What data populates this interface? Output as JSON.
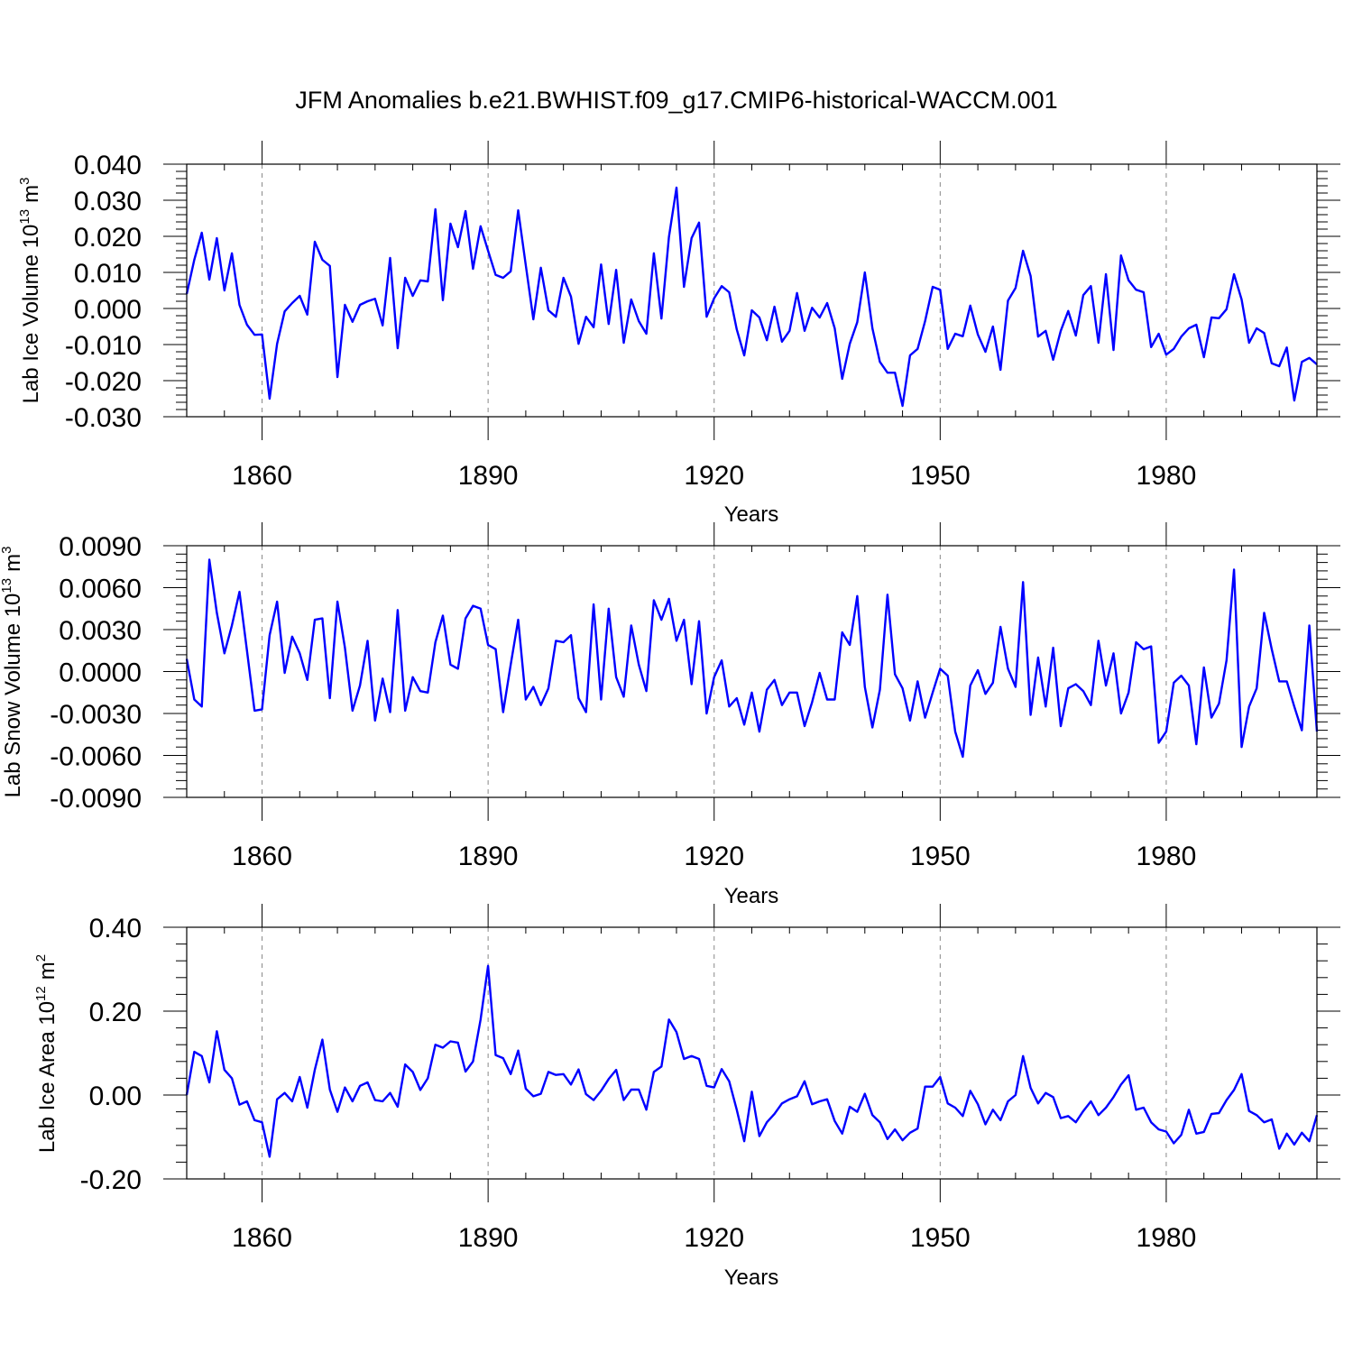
{
  "colors": {
    "series": "#0000ff",
    "axis": "#000000",
    "grid": "#888888",
    "background": "#ffffff"
  },
  "chart_data": {
    "title": "JFM Anomalies b.e21.BWHIST.f09_g17.CMIP6-historical-WACCM.001",
    "x_start": 1850,
    "x_end": 2000,
    "panels": [
      {
        "type": "line",
        "ylabel_main": "Lab Ice Volume 10",
        "ylabel_sup": "13",
        "ylabel_unit": "m",
        "ylabel_unit_sup": "3",
        "xlabel": "Years",
        "xlim": [
          1850,
          2000
        ],
        "ylim": [
          -0.03,
          0.04
        ],
        "xticks": [
          1860,
          1890,
          1920,
          1950,
          1980
        ],
        "xtick_labels": [
          "1860",
          "1890",
          "1920",
          "1950",
          "1980"
        ],
        "yticks": [
          -0.03,
          -0.02,
          -0.01,
          0.0,
          0.01,
          0.02,
          0.03,
          0.04
        ],
        "ytick_labels": [
          "-0.030",
          "-0.020",
          "-0.010",
          "0.000",
          "0.010",
          "0.020",
          "0.030",
          "0.040"
        ],
        "grid": "dashed vertical at major x ticks",
        "values": [
          0.004,
          0.0135,
          0.021,
          0.008,
          0.0195,
          0.005,
          0.0153,
          0.001,
          -0.0045,
          -0.0073,
          -0.0072,
          -0.025,
          -0.0098,
          -0.0008,
          0.0015,
          0.0035,
          -0.0017,
          0.0185,
          0.0135,
          0.0118,
          -0.019,
          0.001,
          -0.0037,
          0.001,
          0.002,
          0.0027,
          -0.0047,
          0.014,
          -0.011,
          0.0085,
          0.0035,
          0.0078,
          0.0075,
          0.0275,
          0.0023,
          0.0235,
          0.017,
          0.027,
          0.011,
          0.0228,
          0.016,
          0.0093,
          0.0085,
          0.0103,
          0.0272,
          0.012,
          -0.003,
          0.0113,
          -0.0005,
          -0.0023,
          0.0085,
          0.0033,
          -0.0098,
          -0.0023,
          -0.0052,
          0.0122,
          -0.0043,
          0.0107,
          -0.0095,
          0.0025,
          -0.0035,
          -0.007,
          0.0153,
          -0.0028,
          0.0198,
          0.0335,
          0.006,
          0.0195,
          0.0238,
          -0.0023,
          0.0028,
          0.0062,
          0.0045,
          -0.0058,
          -0.013,
          -0.0005,
          -0.0025,
          -0.0088,
          0.0005,
          -0.0092,
          -0.0062,
          0.0043,
          -0.0062,
          0.0002,
          -0.0025,
          0.0015,
          -0.0055,
          -0.0195,
          -0.0098,
          -0.0038,
          0.01,
          -0.0055,
          -0.0148,
          -0.0178,
          -0.0178,
          -0.027,
          -0.013,
          -0.0112,
          -0.0035,
          0.006,
          0.0052,
          -0.0112,
          -0.007,
          -0.0077,
          0.0008,
          -0.0072,
          -0.012,
          -0.005,
          -0.017,
          0.0022,
          0.0057,
          0.016,
          0.009,
          -0.0078,
          -0.0062,
          -0.0142,
          -0.0062,
          -0.0007,
          -0.0075,
          0.0037,
          0.0062,
          -0.0095,
          0.0095,
          -0.0115,
          0.0147,
          0.0078,
          0.0052,
          0.0045,
          -0.0107,
          -0.007,
          -0.0128,
          -0.0112,
          -0.0078,
          -0.0055,
          -0.0045,
          -0.0135,
          -0.0025,
          -0.0027,
          -0.0002,
          0.0095,
          0.0025,
          -0.0095,
          -0.0055,
          -0.0068,
          -0.0152,
          -0.016,
          -0.0108,
          -0.0255,
          -0.0148,
          -0.0137,
          -0.0155
        ]
      },
      {
        "type": "line",
        "ylabel_main": "Lab Snow Volume 10",
        "ylabel_sup": "13",
        "ylabel_unit": "m",
        "ylabel_unit_sup": "3",
        "xlabel": "Years",
        "xlim": [
          1850,
          2000
        ],
        "ylim": [
          -0.009,
          0.009
        ],
        "xticks": [
          1860,
          1890,
          1920,
          1950,
          1980
        ],
        "xtick_labels": [
          "1860",
          "1890",
          "1920",
          "1950",
          "1980"
        ],
        "yticks": [
          -0.009,
          -0.006,
          -0.003,
          0.0,
          0.003,
          0.006,
          0.009
        ],
        "ytick_labels": [
          "-0.0090",
          "-0.0060",
          "-0.0030",
          "0.0000",
          "0.0030",
          "0.0060",
          "0.0090"
        ],
        "grid": "dashed vertical at major x ticks",
        "values": [
          0.0009,
          -0.002,
          -0.0025,
          0.008,
          0.0042,
          0.0013,
          0.0033,
          0.0057,
          0.0015,
          -0.0028,
          -0.0027,
          0.0026,
          0.005,
          -0.0001,
          0.0025,
          0.0013,
          -0.0006,
          0.0037,
          0.0038,
          -0.0019,
          0.005,
          0.0017,
          -0.0028,
          -0.001,
          0.0022,
          -0.0035,
          -0.0005,
          -0.0029,
          0.0044,
          -0.0028,
          -0.0004,
          -0.0014,
          -0.0015,
          0.0021,
          0.004,
          0.0005,
          0.0002,
          0.0038,
          0.0047,
          0.0045,
          0.0019,
          0.0016,
          -0.0029,
          0.0005,
          0.0037,
          -0.002,
          -0.0011,
          -0.0024,
          -0.0012,
          0.0022,
          0.0021,
          0.0026,
          -0.0019,
          -0.0029,
          0.0048,
          -0.002,
          0.0045,
          -0.0004,
          -0.0018,
          0.0033,
          0.0005,
          -0.0014,
          0.0051,
          0.0037,
          0.0052,
          0.0022,
          0.0037,
          -0.0009,
          0.0036,
          -0.003,
          -0.0004,
          0.0008,
          -0.0025,
          -0.0019,
          -0.0038,
          -0.0015,
          -0.0043,
          -0.0013,
          -0.0006,
          -0.0024,
          -0.0015,
          -0.0015,
          -0.0039,
          -0.0022,
          -0.0001,
          -0.002,
          -0.002,
          0.0028,
          0.0019,
          0.0054,
          -0.0011,
          -0.004,
          -0.0013,
          0.0055,
          -0.0002,
          -0.0012,
          -0.0035,
          -0.0007,
          -0.0033,
          -0.0015,
          0.0002,
          -0.0003,
          -0.0043,
          -0.0061,
          -0.001,
          0.0001,
          -0.0016,
          -0.0008,
          0.0032,
          0.0002,
          -0.0011,
          0.0064,
          -0.0031,
          0.001,
          -0.0025,
          0.0017,
          -0.0039,
          -0.0012,
          -0.0009,
          -0.0014,
          -0.0024,
          0.0022,
          -0.001,
          0.0013,
          -0.003,
          -0.0015,
          0.0021,
          0.0016,
          0.0018,
          -0.0051,
          -0.0043,
          -0.0008,
          -0.0003,
          -0.001,
          -0.0052,
          0.0003,
          -0.0033,
          -0.0023,
          0.0008,
          0.0073,
          -0.0054,
          -0.0025,
          -0.0012,
          0.0042,
          0.0016,
          -0.0007,
          -0.0007,
          -0.0025,
          -0.0042,
          0.0033,
          -0.0043
        ]
      },
      {
        "type": "line",
        "ylabel_main": "Lab Ice Area 10",
        "ylabel_sup": "12",
        "ylabel_unit": "m",
        "ylabel_unit_sup": "2",
        "xlabel": "Years",
        "xlim": [
          1850,
          2000
        ],
        "ylim": [
          -0.2,
          0.4
        ],
        "xticks": [
          1860,
          1890,
          1920,
          1950,
          1980
        ],
        "xtick_labels": [
          "1860",
          "1890",
          "1920",
          "1950",
          "1980"
        ],
        "yticks": [
          -0.2,
          0.0,
          0.2,
          0.4
        ],
        "ytick_labels": [
          "-0.20",
          "0.00",
          "0.20",
          "0.40"
        ],
        "grid": "dashed vertical at major x ticks",
        "values": [
          0.0,
          0.103,
          0.093,
          0.03,
          0.152,
          0.06,
          0.04,
          -0.023,
          -0.015,
          -0.06,
          -0.065,
          -0.147,
          -0.01,
          0.005,
          -0.015,
          0.043,
          -0.03,
          0.06,
          0.132,
          0.013,
          -0.04,
          0.018,
          -0.015,
          0.022,
          0.03,
          -0.012,
          -0.015,
          0.005,
          -0.028,
          0.073,
          0.055,
          0.012,
          0.04,
          0.12,
          0.113,
          0.128,
          0.125,
          0.056,
          0.08,
          0.18,
          0.308,
          0.095,
          0.088,
          0.05,
          0.106,
          0.015,
          -0.003,
          0.003,
          0.055,
          0.048,
          0.05,
          0.025,
          0.061,
          0.002,
          -0.012,
          0.01,
          0.038,
          0.06,
          -0.012,
          0.013,
          0.013,
          -0.035,
          0.055,
          0.068,
          0.18,
          0.15,
          0.086,
          0.093,
          0.086,
          0.022,
          0.018,
          0.062,
          0.033,
          -0.035,
          -0.11,
          0.008,
          -0.098,
          -0.065,
          -0.045,
          -0.02,
          -0.01,
          -0.003,
          0.033,
          -0.022,
          -0.015,
          -0.01,
          -0.062,
          -0.092,
          -0.028,
          -0.04,
          0.003,
          -0.048,
          -0.065,
          -0.105,
          -0.082,
          -0.108,
          -0.09,
          -0.08,
          0.02,
          0.02,
          0.043,
          -0.02,
          -0.03,
          -0.05,
          0.01,
          -0.022,
          -0.07,
          -0.035,
          -0.06,
          -0.015,
          0.0,
          0.093,
          0.017,
          -0.02,
          0.005,
          -0.005,
          -0.055,
          -0.05,
          -0.065,
          -0.038,
          -0.015,
          -0.048,
          -0.03,
          -0.005,
          0.025,
          0.047,
          -0.035,
          -0.03,
          -0.065,
          -0.082,
          -0.087,
          -0.115,
          -0.095,
          -0.035,
          -0.092,
          -0.088,
          -0.045,
          -0.043,
          -0.012,
          0.012,
          0.05,
          -0.038,
          -0.048,
          -0.065,
          -0.058,
          -0.128,
          -0.092,
          -0.118,
          -0.09,
          -0.11,
          -0.048
        ]
      }
    ]
  }
}
